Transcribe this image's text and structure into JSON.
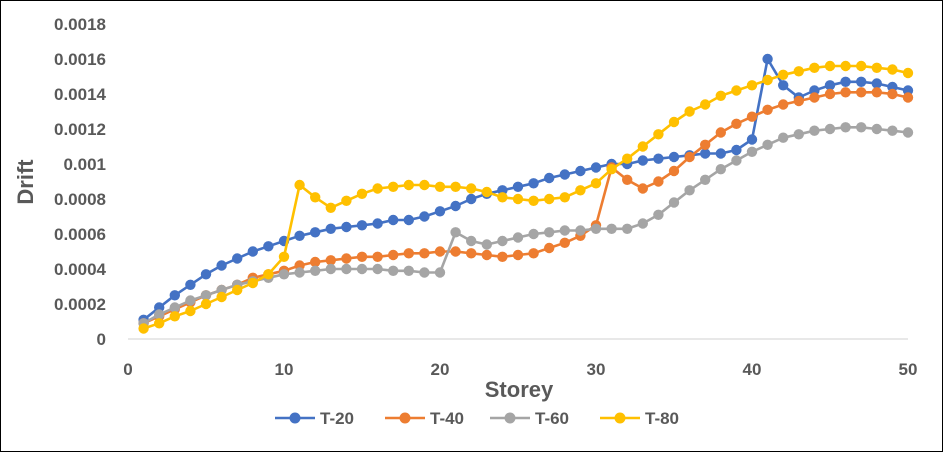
{
  "chart_data": {
    "type": "line",
    "xlabel": "Storey",
    "ylabel": "Drift",
    "xlim": [
      0,
      50
    ],
    "ylim": [
      0,
      0.0018
    ],
    "x_ticks": [
      "0",
      "10",
      "20",
      "30",
      "40",
      "50"
    ],
    "y_ticks": [
      "0",
      "0.0002",
      "0.0004",
      "0.0006",
      "0.0008",
      "0.001",
      "0.0012",
      "0.0014",
      "0.0016",
      "0.0018"
    ],
    "grid": false,
    "legend": "bottom",
    "x": [
      1,
      2,
      3,
      4,
      5,
      6,
      7,
      8,
      9,
      10,
      11,
      12,
      13,
      14,
      15,
      16,
      17,
      18,
      19,
      20,
      21,
      22,
      23,
      24,
      25,
      26,
      27,
      28,
      29,
      30,
      31,
      32,
      33,
      34,
      35,
      36,
      37,
      38,
      39,
      40,
      41,
      42,
      43,
      44,
      45,
      46,
      47,
      48,
      49,
      50
    ],
    "series": [
      {
        "name": "T-20",
        "color": "#4472C4",
        "values": [
          0.00011,
          0.00018,
          0.00025,
          0.00031,
          0.00037,
          0.00042,
          0.00046,
          0.0005,
          0.00053,
          0.00056,
          0.00059,
          0.00061,
          0.00063,
          0.00064,
          0.00065,
          0.00066,
          0.00068,
          0.00068,
          0.0007,
          0.00073,
          0.00076,
          0.0008,
          0.00083,
          0.00085,
          0.00087,
          0.00089,
          0.00092,
          0.00094,
          0.00096,
          0.00098,
          0.001,
          0.001,
          0.00102,
          0.00103,
          0.00104,
          0.00105,
          0.00106,
          0.00106,
          0.00108,
          0.00114,
          0.0016,
          0.00145,
          0.00138,
          0.00142,
          0.00145,
          0.00147,
          0.00147,
          0.00146,
          0.00144,
          0.00142
        ]
      },
      {
        "name": "T-40",
        "color": "#ED7D31",
        "values": [
          9e-05,
          0.00013,
          0.00017,
          0.00021,
          0.00025,
          0.00028,
          0.00031,
          0.00035,
          0.00037,
          0.00039,
          0.00042,
          0.00044,
          0.00045,
          0.00046,
          0.00047,
          0.00047,
          0.00048,
          0.00049,
          0.00049,
          0.0005,
          0.0005,
          0.00049,
          0.00048,
          0.00047,
          0.00048,
          0.00049,
          0.00052,
          0.00055,
          0.00059,
          0.00065,
          0.00098,
          0.00091,
          0.00086,
          0.0009,
          0.00096,
          0.00104,
          0.00111,
          0.00118,
          0.00123,
          0.00127,
          0.00131,
          0.00134,
          0.00136,
          0.00138,
          0.0014,
          0.00141,
          0.00141,
          0.00141,
          0.0014,
          0.00138
        ]
      },
      {
        "name": "T-60",
        "color": "#A5A5A5",
        "values": [
          9e-05,
          0.00014,
          0.00018,
          0.00022,
          0.00025,
          0.00028,
          0.00031,
          0.00033,
          0.00035,
          0.00037,
          0.00038,
          0.00039,
          0.0004,
          0.0004,
          0.0004,
          0.0004,
          0.00039,
          0.00039,
          0.00038,
          0.00038,
          0.00061,
          0.00056,
          0.00054,
          0.00056,
          0.00058,
          0.0006,
          0.00061,
          0.00062,
          0.00062,
          0.00063,
          0.00063,
          0.00063,
          0.00066,
          0.00071,
          0.00078,
          0.00085,
          0.00091,
          0.00097,
          0.00102,
          0.00107,
          0.00111,
          0.00115,
          0.00117,
          0.00119,
          0.0012,
          0.00121,
          0.00121,
          0.0012,
          0.00119,
          0.00118
        ]
      },
      {
        "name": "T-80",
        "color": "#FFC000",
        "values": [
          6e-05,
          9e-05,
          0.00013,
          0.00016,
          0.0002,
          0.00024,
          0.00028,
          0.00032,
          0.00037,
          0.00047,
          0.00088,
          0.00081,
          0.00075,
          0.00079,
          0.00083,
          0.00086,
          0.00087,
          0.00088,
          0.00088,
          0.00087,
          0.00087,
          0.00086,
          0.00084,
          0.00081,
          0.0008,
          0.00079,
          0.0008,
          0.00081,
          0.00085,
          0.00089,
          0.00097,
          0.00103,
          0.0011,
          0.00117,
          0.00124,
          0.0013,
          0.00134,
          0.00139,
          0.00142,
          0.00145,
          0.00148,
          0.00151,
          0.00153,
          0.00155,
          0.00156,
          0.00156,
          0.00156,
          0.00155,
          0.00154,
          0.00152
        ]
      }
    ]
  }
}
